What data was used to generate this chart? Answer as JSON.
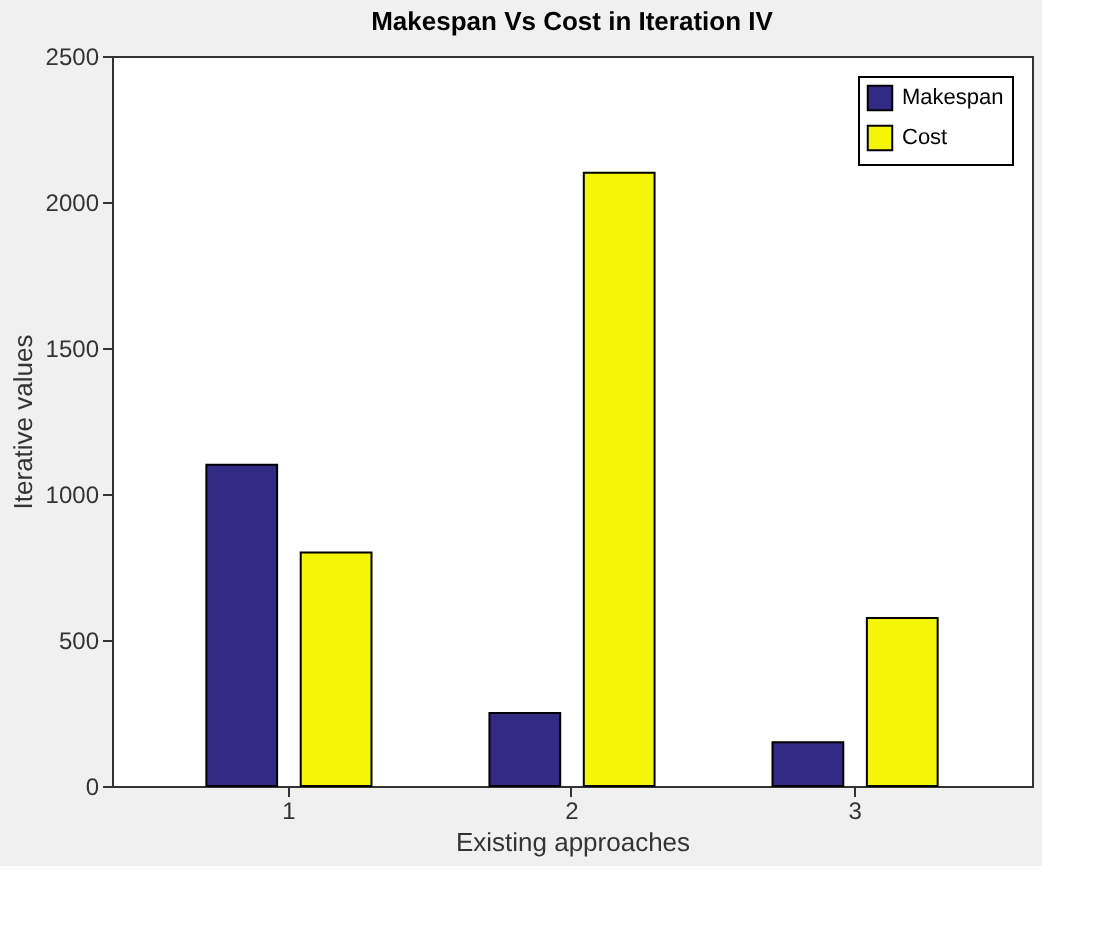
{
  "chart_data": {
    "type": "bar",
    "title": "Makespan Vs Cost in Iteration IV",
    "xlabel": "Existing approaches",
    "ylabel": "Iterative values",
    "categories": [
      "1",
      "2",
      "3"
    ],
    "series": [
      {
        "name": "Makespan",
        "color": "#332a85",
        "values": [
          1100,
          250,
          150
        ]
      },
      {
        "name": "Cost",
        "color": "#f5f50a",
        "values": [
          800,
          2100,
          575
        ]
      }
    ],
    "ylim": [
      0,
      2500
    ],
    "yticks": [
      0,
      500,
      1000,
      1500,
      2000,
      2500
    ],
    "grid": false,
    "legend": "top right"
  }
}
